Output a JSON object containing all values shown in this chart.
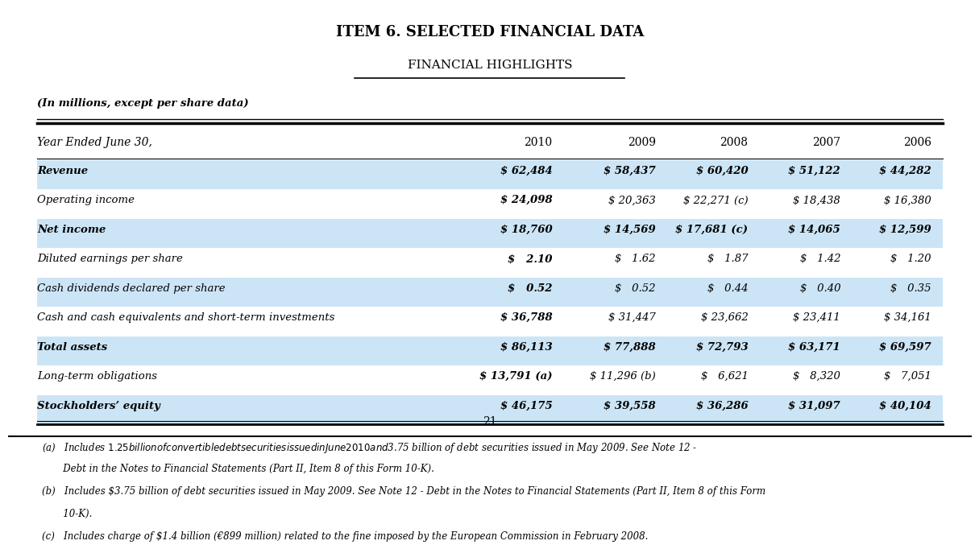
{
  "title": "ITEM 6. SELECTED FINANCIAL DATA",
  "subtitle": "FINANCIAL HIGHLIGHTS",
  "note_units": "(In millions, except per share data)",
  "columns": [
    "Year Ended June 30,",
    "2010",
    "2009",
    "2008",
    "2007",
    "2006"
  ],
  "rows": [
    {
      "label": "Revenue",
      "values": [
        "$ 62,484",
        "$ 58,437",
        "$ 60,420",
        "$ 51,122",
        "$ 44,282"
      ],
      "bold": true,
      "shaded": true
    },
    {
      "label": "Operating income",
      "values": [
        "$ 24,098",
        "$ 20,363",
        "$ 22,271 (c)",
        "$ 18,438",
        "$ 16,380"
      ],
      "bold": false,
      "shaded": false
    },
    {
      "label": "Net income",
      "values": [
        "$ 18,760",
        "$ 14,569",
        "$ 17,681 (c)",
        "$ 14,065",
        "$ 12,599"
      ],
      "bold": true,
      "shaded": true
    },
    {
      "label": "Diluted earnings per share",
      "values": [
        "$   2.10",
        "$   1.62",
        "$   1.87",
        "$   1.42",
        "$   1.20"
      ],
      "bold": false,
      "shaded": false
    },
    {
      "label": "Cash dividends declared per share",
      "values": [
        "$   0.52",
        "$   0.52",
        "$   0.44",
        "$   0.40",
        "$   0.35"
      ],
      "bold": false,
      "shaded": true
    },
    {
      "label": "Cash and cash equivalents and short-term investments",
      "values": [
        "$ 36,788",
        "$ 31,447",
        "$ 23,662",
        "$ 23,411",
        "$ 34,161"
      ],
      "bold": false,
      "shaded": false
    },
    {
      "label": "Total assets",
      "values": [
        "$ 86,113",
        "$ 77,888",
        "$ 72,793",
        "$ 63,171",
        "$ 69,597"
      ],
      "bold": true,
      "shaded": true
    },
    {
      "label": "Long-term obligations",
      "values": [
        "$ 13,791 (a)",
        "$ 11,296 (b)",
        "$   6,621",
        "$   8,320",
        "$   7,051"
      ],
      "bold": false,
      "shaded": false
    },
    {
      "label": "Stockholders’ equity",
      "values": [
        "$ 46,175",
        "$ 39,558",
        "$ 36,286",
        "$ 31,097",
        "$ 40,104"
      ],
      "bold": true,
      "shaded": true
    }
  ],
  "footnote_a": "(a)   Includes $1.25 billion of convertible debt securities issued in June 2010 and $3.75 billion of debt securities issued in May 2009. See Note 12 -",
  "footnote_a2": "       Debt in the Notes to Financial Statements (Part II, Item 8 of this Form 10-K).",
  "footnote_b": "(b)   Includes $3.75 billion of debt securities issued in May 2009. See Note 12 - Debt in the Notes to Financial Statements (Part II, Item 8 of this Form",
  "footnote_b2": "       10-K).",
  "footnote_c": "(c)   Includes charge of $1.4 billion (€899 million) related to the fine imposed by the European Commission in February 2008.",
  "page_number": "21",
  "bg_color": "#ffffff",
  "shaded_color": "#cce5f6",
  "text_color": "#000000",
  "title_fontsize": 13,
  "subtitle_fontsize": 11,
  "body_fontsize": 9.5,
  "footnote_fontsize": 8.5
}
